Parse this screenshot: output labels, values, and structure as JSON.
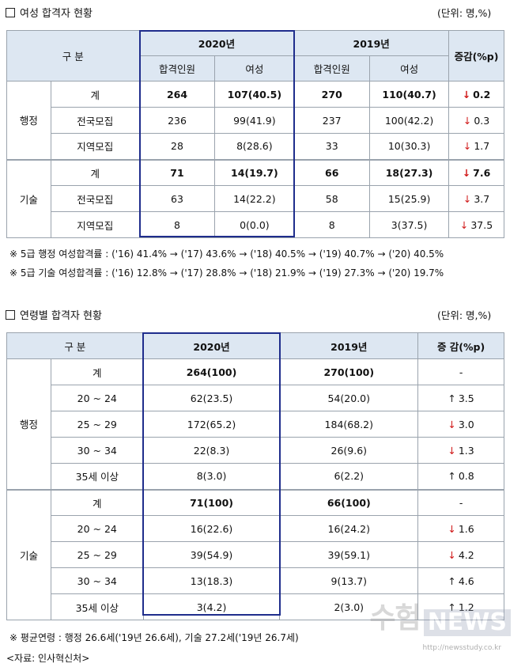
{
  "section1": {
    "title": "여성 합격자 현황",
    "unit": "(단위: 명,%)",
    "header": {
      "gubun": "구 분",
      "year2020": "2020년",
      "year2019": "2019년",
      "change": "증감(%p)",
      "applicants": "합격인원",
      "women": "여성"
    },
    "groups": [
      {
        "name": "행정",
        "rows": [
          {
            "label": "계",
            "bold": true,
            "a20": "264",
            "w20": "107(40.5)",
            "a19": "270",
            "w19": "110(40.7)",
            "dir": "down",
            "change": "0.2"
          },
          {
            "label": "전국모집",
            "bold": false,
            "a20": "236",
            "w20": "99(41.9)",
            "a19": "237",
            "w19": "100(42.2)",
            "dir": "down",
            "change": "0.3"
          },
          {
            "label": "지역모집",
            "bold": false,
            "a20": "28",
            "w20": "8(28.6)",
            "a19": "33",
            "w19": "10(30.3)",
            "dir": "down",
            "change": "1.7"
          }
        ]
      },
      {
        "name": "기술",
        "rows": [
          {
            "label": "계",
            "bold": true,
            "a20": "71",
            "w20": "14(19.7)",
            "a19": "66",
            "w19": "18(27.3)",
            "dir": "down",
            "change": "7.6"
          },
          {
            "label": "전국모집",
            "bold": false,
            "a20": "63",
            "w20": "14(22.2)",
            "a19": "58",
            "w19": "15(25.9)",
            "dir": "down",
            "change": "3.7"
          },
          {
            "label": "지역모집",
            "bold": false,
            "a20": "8",
            "w20": "0(0.0)",
            "a19": "8",
            "w19": "3(37.5)",
            "dir": "down",
            "change": "37.5"
          }
        ]
      }
    ],
    "notes": [
      "※ 5급 행정 여성합격률 : ('16) 41.4% → ('17) 43.6% → ('18) 40.5% → ('19) 40.7% → ('20) 40.5%",
      "※ 5급 기술 여성합격률 : ('16) 12.8% → ('17) 28.8% → ('18) 21.9% → ('19) 27.3% → ('20) 19.7%"
    ]
  },
  "section2": {
    "title": "연령별 합격자 현황",
    "unit": "(단위: 명,%)",
    "header": {
      "gubun": "구 분",
      "year2020": "2020년",
      "year2019": "2019년",
      "change": "증 감(%p)"
    },
    "groups": [
      {
        "name": "행정",
        "rows": [
          {
            "label": "계",
            "bold": true,
            "v20": "264(100)",
            "v19": "270(100)",
            "dir": "none",
            "change": "-"
          },
          {
            "label": "20 ~ 24",
            "bold": false,
            "v20": "62(23.5)",
            "v19": "54(20.0)",
            "dir": "up",
            "change": "3.5"
          },
          {
            "label": "25 ~ 29",
            "bold": false,
            "v20": "172(65.2)",
            "v19": "184(68.2)",
            "dir": "down",
            "change": "3.0"
          },
          {
            "label": "30 ~ 34",
            "bold": false,
            "v20": "22(8.3)",
            "v19": "26(9.6)",
            "dir": "down",
            "change": "1.3"
          },
          {
            "label": "35세 이상",
            "bold": false,
            "v20": "8(3.0)",
            "v19": "6(2.2)",
            "dir": "up",
            "change": "0.8"
          }
        ]
      },
      {
        "name": "기술",
        "rows": [
          {
            "label": "계",
            "bold": true,
            "v20": "71(100)",
            "v19": "66(100)",
            "dir": "none",
            "change": "-"
          },
          {
            "label": "20 ~ 24",
            "bold": false,
            "v20": "16(22.6)",
            "v19": "16(24.2)",
            "dir": "down",
            "change": "1.6"
          },
          {
            "label": "25 ~ 29",
            "bold": false,
            "v20": "39(54.9)",
            "v19": "39(59.1)",
            "dir": "down",
            "change": "4.2"
          },
          {
            "label": "30 ~ 34",
            "bold": false,
            "v20": "13(18.3)",
            "v19": "9(13.7)",
            "dir": "up",
            "change": "4.6"
          },
          {
            "label": "35세 이상",
            "bold": false,
            "v20": "3(4.2)",
            "v19": "2(3.0)",
            "dir": "up",
            "change": "1.2"
          }
        ]
      }
    ],
    "notes": [
      "※ 평균연령 : 행정 26.6세('19년 26.6세), 기술 27.2세('19년 26.7세)"
    ]
  },
  "source": "<자료: 인사혁신처>",
  "watermark": {
    "main": "수험",
    "news": "NEWS",
    "url": "http://newsstudy.co.kr"
  },
  "symbols": {
    "down": "↓",
    "up": "↑"
  },
  "colors": {
    "header_bg": "#dde7f2",
    "highlight_border": "#1f2d8c",
    "down_arrow": "#d01818",
    "grid": "#9aa3ad"
  }
}
